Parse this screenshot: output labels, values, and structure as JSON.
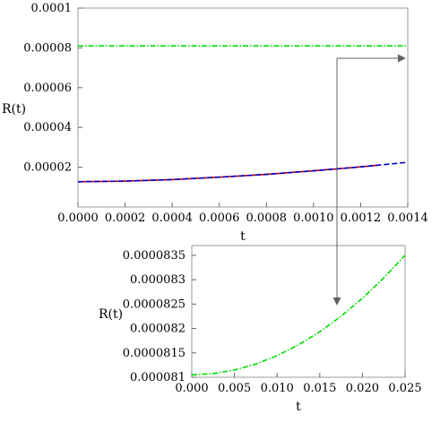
{
  "chart_data": [
    {
      "type": "line",
      "xlabel": "t",
      "ylabel": "R(t)",
      "xlim": [
        0,
        0.0014
      ],
      "ylim": [
        0,
        0.0001
      ],
      "x_ticks": [
        "0.0000",
        "0.0002",
        "0.0004",
        "0.0006",
        "0.0008",
        "0.0010",
        "0.0012",
        "0.0014"
      ],
      "y_ticks": [
        "0.00002",
        "0.00004",
        "0.00006",
        "0.00008",
        "0.0001"
      ],
      "grid": false,
      "series": [
        {
          "color": "#00dd00",
          "dash": "dot-dash",
          "x": [
            0,
            0.0002,
            0.0004,
            0.0006,
            0.0008,
            0.001,
            0.0012,
            0.0014
          ],
          "y": [
            8.1e-05,
            8.1e-05,
            8.1e-05,
            8.1e-05,
            8.1e-05,
            8.1e-05,
            8.1e-05,
            8.1e-05
          ]
        },
        {
          "color": "#cc0000",
          "dash": "solid",
          "x": [
            0,
            0.0002,
            0.0004,
            0.0006,
            0.0008,
            0.001,
            0.0012,
            0.00128
          ],
          "y": [
            1.27e-05,
            1.3e-05,
            1.38e-05,
            1.5e-05,
            1.64e-05,
            1.82e-05,
            2.02e-05,
            2.11e-05
          ]
        },
        {
          "color": "#0000cc",
          "dash": "dashed",
          "x": [
            0,
            0.0002,
            0.0004,
            0.0006,
            0.0008,
            0.001,
            0.0012,
            0.0014
          ],
          "y": [
            1.27e-05,
            1.3e-05,
            1.38e-05,
            1.5e-05,
            1.64e-05,
            1.82e-05,
            2.02e-05,
            2.25e-05
          ]
        }
      ]
    },
    {
      "type": "line",
      "xlabel": "t",
      "ylabel": "R(t)",
      "xlim": [
        0,
        0.025
      ],
      "ylim": [
        8.1e-05,
        8.37e-05
      ],
      "x_ticks": [
        "0.000",
        "0.005",
        "0.010",
        "0.015",
        "0.020",
        "0.025"
      ],
      "y_ticks": [
        "0.000081",
        "0.0000815",
        "0.000082",
        "0.0000825",
        "0.000083",
        "0.0000835"
      ],
      "grid": false,
      "series": [
        {
          "color": "#00dd00",
          "dash": "dot-dash",
          "x": [
            0,
            0.0025,
            0.005,
            0.0075,
            0.01,
            0.0125,
            0.015,
            0.0175,
            0.02,
            0.0225,
            0.025
          ],
          "y": [
            8.105e-05,
            8.10746e-05,
            8.1148e-05,
            8.12705e-05,
            8.1442e-05,
            8.16625e-05,
            8.1932e-05,
            8.22505e-05,
            8.2618e-05,
            8.30345e-05,
            8.35e-05
          ]
        }
      ]
    }
  ]
}
